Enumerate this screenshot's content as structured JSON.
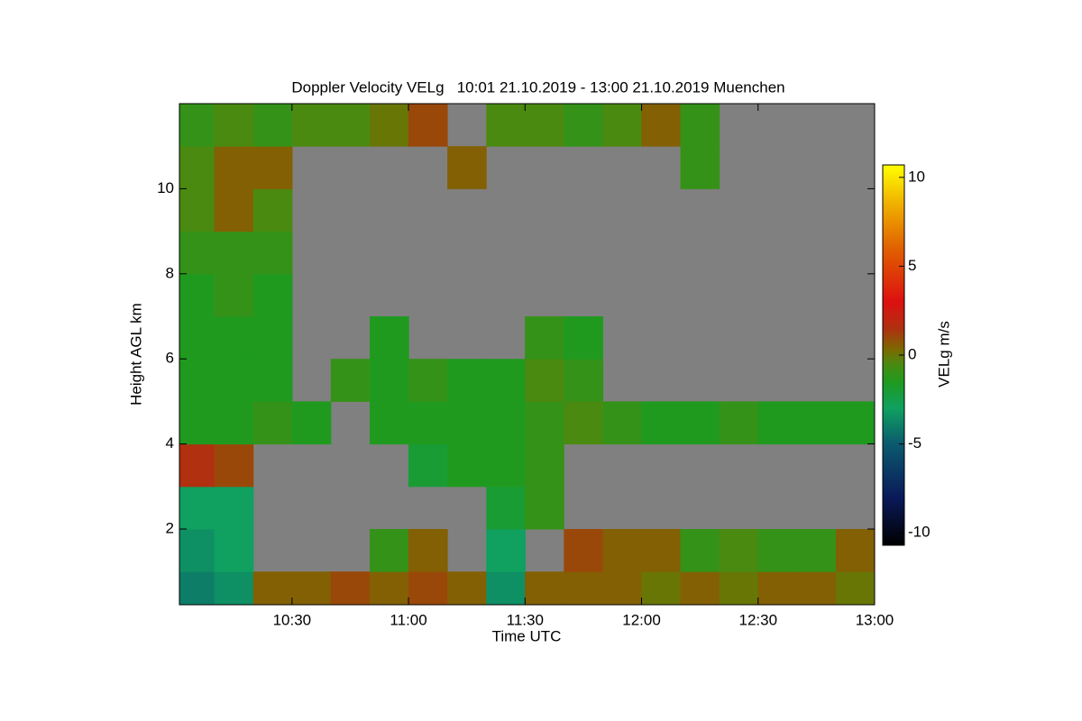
{
  "chart_data": {
    "type": "heatmap",
    "title": "Doppler Velocity VELg   10:01 21.10.2019 - 13:00 21.10.2019 Muenchen",
    "x_label": "Time UTC",
    "y_label": "Height AGL km",
    "colorbar_label": "VELg m/s",
    "xlim": [
      10.017,
      13.0
    ],
    "ylim": [
      0.22,
      12.0
    ],
    "xticks": [
      {
        "value": 10.5,
        "label": "10:30"
      },
      {
        "value": 11,
        "label": "11:00"
      },
      {
        "value": 11.5,
        "label": "11:30"
      },
      {
        "value": 12,
        "label": "12:00"
      },
      {
        "value": 12.5,
        "label": "12:30"
      },
      {
        "value": 13,
        "label": "13:00"
      }
    ],
    "yticks": [
      2,
      4,
      6,
      8,
      10
    ],
    "clim": [
      -10.7,
      10.7
    ],
    "cticks": [
      -10,
      -5,
      0,
      5,
      10
    ],
    "background": "#808080",
    "colormap": [
      [
        -10.7,
        "#000000"
      ],
      [
        -8,
        "#0a1a5a"
      ],
      [
        -5,
        "#0b5a6e"
      ],
      [
        -3,
        "#10a060"
      ],
      [
        -1.5,
        "#1f9a1f"
      ],
      [
        -0.5,
        "#4a8a10"
      ],
      [
        0.3,
        "#7a6a00"
      ],
      [
        1.5,
        "#b03010"
      ],
      [
        3,
        "#dd1010"
      ],
      [
        6,
        "#e06000"
      ],
      [
        8.5,
        "#f0b000"
      ],
      [
        10.7,
        "#ffff00"
      ]
    ],
    "x": [
      10.083,
      10.25,
      10.417,
      10.583,
      10.75,
      10.917,
      11.083,
      11.25,
      11.417,
      11.583,
      11.75,
      11.917,
      12.083,
      12.25,
      12.417,
      12.583,
      12.75,
      12.917
    ],
    "y": [
      0.5,
      1.5,
      2.5,
      3.5,
      4.5,
      5.5,
      6.5,
      7.5,
      8.5,
      9.5,
      10.5,
      11.5
    ],
    "z": [
      [
        -4,
        -3.5,
        0.5,
        0.5,
        1,
        0.5,
        1,
        0.5,
        -3.5,
        0.5,
        0.5,
        0.5,
        0,
        0.5,
        0,
        0.5,
        0.5,
        0
      ],
      [
        -3.5,
        -3,
        null,
        null,
        null,
        -1,
        0.5,
        null,
        -3,
        null,
        1,
        0.5,
        0.5,
        -1,
        -0.5,
        -1,
        -1,
        0.5
      ],
      [
        -3,
        -3,
        null,
        null,
        null,
        null,
        null,
        null,
        -2,
        -1,
        null,
        null,
        null,
        null,
        null,
        null,
        null,
        null
      ],
      [
        1.5,
        1,
        null,
        null,
        null,
        null,
        -2,
        -1.5,
        -1.5,
        -1,
        null,
        null,
        null,
        null,
        null,
        null,
        null,
        null
      ],
      [
        -1.5,
        -1.5,
        -1,
        -1.5,
        null,
        -1.5,
        -1.5,
        -1.5,
        -1.5,
        -1,
        -0.5,
        -1,
        -1.5,
        -1.5,
        -1,
        -1.5,
        -1.5,
        -1.5
      ],
      [
        -1.5,
        -1.5,
        -1.5,
        null,
        -1,
        -1.5,
        -1,
        -1.5,
        -1.5,
        -0.5,
        -1,
        null,
        null,
        null,
        null,
        null,
        null,
        null
      ],
      [
        -1.5,
        -1.5,
        -1.5,
        null,
        null,
        -1.5,
        null,
        null,
        null,
        -1,
        -1.5,
        null,
        null,
        null,
        null,
        null,
        null,
        null
      ],
      [
        -1.5,
        -1,
        -1.5,
        null,
        null,
        null,
        null,
        null,
        null,
        null,
        null,
        null,
        null,
        null,
        null,
        null,
        null,
        null
      ],
      [
        -1,
        -1,
        -1,
        null,
        null,
        null,
        null,
        null,
        null,
        null,
        null,
        null,
        null,
        null,
        null,
        null,
        null,
        null
      ],
      [
        -0.5,
        0.5,
        -0.5,
        null,
        null,
        null,
        null,
        null,
        null,
        null,
        null,
        null,
        null,
        null,
        null,
        null,
        null,
        null
      ],
      [
        -0.5,
        0.5,
        0.5,
        null,
        null,
        null,
        null,
        0.5,
        null,
        null,
        null,
        null,
        null,
        -1,
        null,
        null,
        null,
        null
      ],
      [
        -1,
        -0.5,
        -1,
        -0.5,
        -0.5,
        0,
        1,
        null,
        -0.5,
        -0.5,
        -1,
        -0.5,
        0.5,
        -1,
        null,
        null,
        null,
        null
      ]
    ]
  }
}
